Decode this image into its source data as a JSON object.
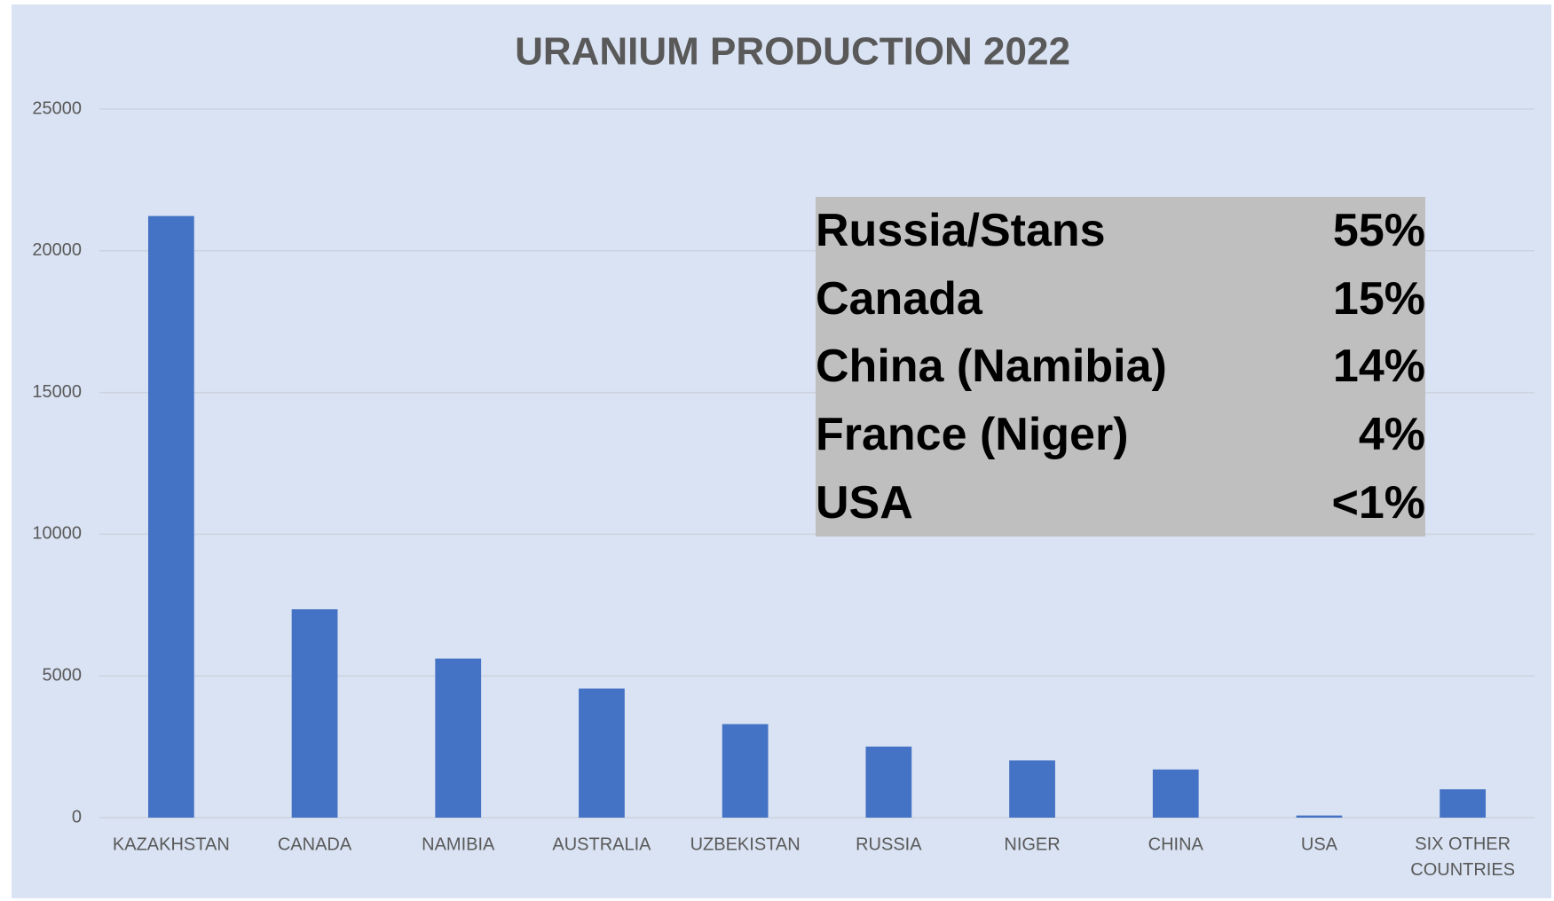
{
  "chart_data": {
    "type": "bar",
    "title": "URANIUM PRODUCTION 2022",
    "categories": [
      "KAZAKHSTAN",
      "CANADA",
      "NAMIBIA",
      "AUSTRALIA",
      "UZBEKISTAN",
      "RUSSIA",
      "NIGER",
      "CHINA",
      "USA",
      "SIX OTHER COUNTRIES"
    ],
    "values": [
      21227,
      7351,
      5613,
      4553,
      3300,
      2508,
      2020,
      1700,
      75,
      1000
    ],
    "color": "#4472c4",
    "ylim": [
      0,
      25000
    ],
    "yticks": [
      0,
      5000,
      10000,
      15000,
      20000,
      25000
    ],
    "grid": true,
    "annotation_table": {
      "rows": [
        [
          "Russia/Stans",
          "55%"
        ],
        [
          "Canada",
          "15%"
        ],
        [
          "China (Namibia)",
          "14%"
        ],
        [
          "France (Niger)",
          "4%"
        ],
        [
          "USA",
          "<1%"
        ]
      ]
    }
  }
}
